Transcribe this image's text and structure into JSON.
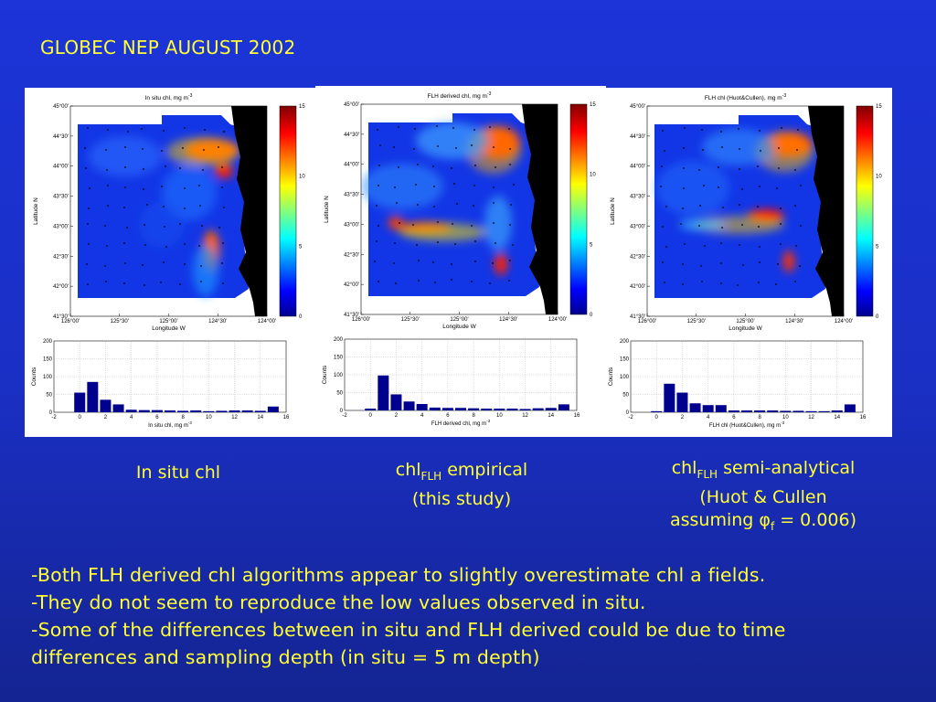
{
  "slide_title": "GLOBEC NEP AUGUST 2002",
  "panels": [
    {
      "map_title": "In situ chl, mg m",
      "map_title_sup": "-3",
      "hist_xlabel": "In situ chl, mg m",
      "hist_xlabel_sup": "-3",
      "caption_line1": "In situ chl"
    },
    {
      "map_title": "FLH derived chl, mg m",
      "map_title_sup": "-3",
      "hist_xlabel": "FLH derived chl, mg m",
      "hist_xlabel_sup": "-3",
      "caption_main": "chl",
      "caption_sub": "FLH",
      "caption_rest": " empirical",
      "caption_line2": "(this study)"
    },
    {
      "map_title": "FLH chl (Huot&Cullen), mg m",
      "map_title_sup": "-3",
      "hist_xlabel": "FLH chl (Huot&Cullen), mg m",
      "hist_xlabel_sup": "-3",
      "caption_main": "chl",
      "caption_sub": "FLH",
      "caption_rest": " semi-analytical",
      "caption_line2": "(Huot & Cullen",
      "caption_line3a": "assuming ",
      "caption_phi": "φ",
      "caption_phi_sub": "f",
      "caption_line3b": " = 0.006)"
    }
  ],
  "map_axes": {
    "ylabel": "Latitude N",
    "xlabel": "Longitude W",
    "yticks": [
      "45°00'",
      "44°30'",
      "44°00'",
      "43°30'",
      "43°00'",
      "42°30'",
      "42°00'",
      "41°30'"
    ],
    "xticks": [
      "126°00'",
      "125°30'",
      "125°00'",
      "124°30'",
      "124°00'"
    ],
    "colorbar_ticks": [
      "15",
      "10",
      "5",
      "0"
    ]
  },
  "hist_axes": {
    "ylabel": "Counts",
    "yticks": [
      "200",
      "150",
      "100",
      "50",
      "0"
    ],
    "xticks": [
      "-2",
      "0",
      "2",
      "4",
      "6",
      "8",
      "10",
      "12",
      "14",
      "16"
    ]
  },
  "chart_data": [
    {
      "type": "bar",
      "title": "",
      "xlabel": "In situ chl, mg m-3",
      "ylabel": "Counts",
      "xlim": [
        -2,
        16
      ],
      "ylim": [
        0,
        200
      ],
      "x": [
        0,
        1,
        2,
        3,
        4,
        5,
        6,
        7,
        8,
        9,
        10,
        11,
        12,
        13,
        14,
        15
      ],
      "values": [
        55,
        85,
        35,
        22,
        7,
        6,
        6,
        5,
        4,
        5,
        3,
        4,
        5,
        5,
        4,
        16
      ],
      "color": "#00008f"
    },
    {
      "type": "bar",
      "title": "",
      "xlabel": "FLH derived chl, mg m-3",
      "ylabel": "Counts",
      "xlim": [
        -2,
        16
      ],
      "ylim": [
        0,
        200
      ],
      "x": [
        0,
        1,
        2,
        3,
        4,
        5,
        6,
        7,
        8,
        9,
        10,
        11,
        12,
        13,
        14,
        15
      ],
      "values": [
        5,
        98,
        45,
        25,
        18,
        8,
        7,
        7,
        6,
        5,
        5,
        5,
        4,
        6,
        7,
        17
      ],
      "color": "#00008f"
    },
    {
      "type": "bar",
      "title": "",
      "xlabel": "FLH chl (Huot&Cullen), mg m-3",
      "ylabel": "Counts",
      "xlim": [
        -2,
        16
      ],
      "ylim": [
        0,
        200
      ],
      "x": [
        0,
        1,
        2,
        3,
        4,
        5,
        6,
        7,
        8,
        9,
        10,
        11,
        12,
        13,
        14,
        15
      ],
      "values": [
        3,
        80,
        55,
        25,
        20,
        20,
        5,
        5,
        5,
        5,
        4,
        4,
        3,
        3,
        5,
        22
      ],
      "color": "#00008f"
    }
  ],
  "bullets": [
    "-Both  FLH derived chl algorithms appear to slightly overestimate chl a fields.",
    "-They do not seem to reproduce the low values observed in situ.",
    "-Some of the differences between in situ and FLH derived could be due to time",
    "differences and sampling depth (in situ = 5 m depth)"
  ],
  "colors": {
    "text_yellow": "#ffff33",
    "bar": "#00008f",
    "land": "#000000"
  }
}
